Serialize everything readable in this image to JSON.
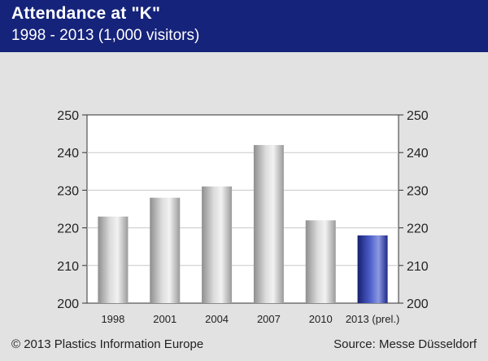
{
  "header": {
    "title": "Attendance at \"K\"",
    "subtitle": "1998 - 2013 (1,000 visitors)"
  },
  "footer": {
    "copyright": "© 2013 Plastics Information Europe",
    "source": "Source: Messe Düsseldorf"
  },
  "colors": {
    "header_bg": "#15237a",
    "bar_gray": "#b4b4b4",
    "bar_highlight": "#2b3a9e",
    "background": "#e2e2e2"
  },
  "chart_data": {
    "type": "bar",
    "categories": [
      "1998",
      "2001",
      "2004",
      "2007",
      "2010",
      "2013 (prel.)"
    ],
    "values": [
      223,
      228,
      231,
      242,
      222,
      218
    ],
    "highlighted_category": "2013 (prel.)",
    "ylim": [
      200,
      250
    ],
    "yticks": [
      200,
      210,
      220,
      230,
      240,
      250
    ],
    "grid": true,
    "y_axis_labels_both_sides": true
  }
}
